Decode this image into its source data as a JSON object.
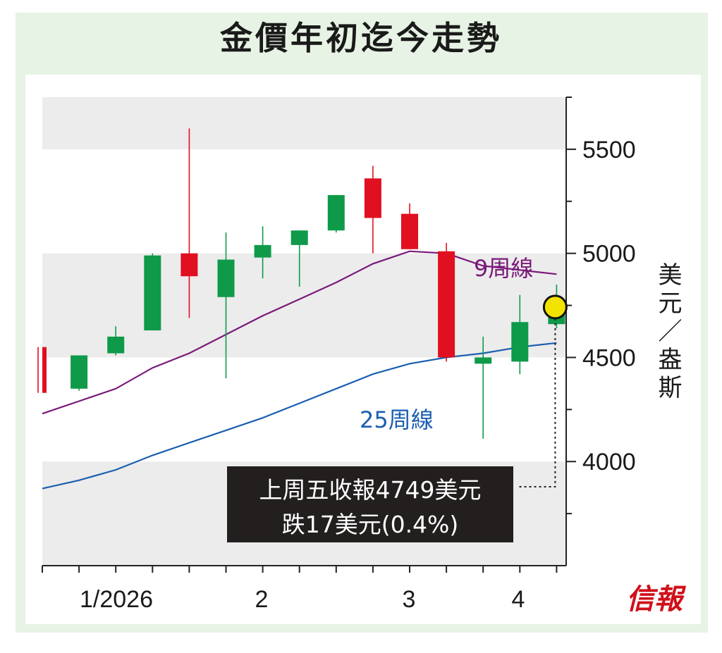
{
  "title": "金價年初迄今走勢",
  "unit_label": "美元／盎斯",
  "logo_text": "信報",
  "colors": {
    "up": "#0f9a4a",
    "down": "#e01020",
    "ma9": "#7a1a7a",
    "ma25": "#1a5fb0",
    "band": "#ececec",
    "highlight": "#f2e400"
  },
  "chart_data": {
    "type": "candlestick",
    "title": "金價年初迄今走勢",
    "ylabel": "美元／盎斯",
    "ylim": [
      3500,
      5750
    ],
    "yticks": [
      "4000",
      "4500",
      "5000",
      "5500"
    ],
    "yticks_values": [
      4000,
      4500,
      5000,
      5500
    ],
    "xticks": [
      "1/2026",
      "2",
      "3",
      "4"
    ],
    "weeks": 15,
    "candles": [
      {
        "open": 4550,
        "close": 4330,
        "high": 4550,
        "low": 4330
      },
      {
        "open": 4350,
        "close": 4510,
        "high": 4510,
        "low": 4340
      },
      {
        "open": 4520,
        "close": 4600,
        "high": 4650,
        "low": 4510
      },
      {
        "open": 4630,
        "close": 4990,
        "high": 5000,
        "low": 4630
      },
      {
        "open": 5000,
        "close": 4890,
        "high": 5600,
        "low": 4690
      },
      {
        "open": 4790,
        "close": 4970,
        "high": 5100,
        "low": 4400
      },
      {
        "open": 4980,
        "close": 5040,
        "high": 5130,
        "low": 4880
      },
      {
        "open": 5040,
        "close": 5110,
        "high": 5110,
        "low": 4840
      },
      {
        "open": 5110,
        "close": 5280,
        "high": 5280,
        "low": 5100
      },
      {
        "open": 5360,
        "close": 5170,
        "high": 5420,
        "low": 5000
      },
      {
        "open": 5190,
        "close": 5020,
        "high": 5240,
        "low": 5020
      },
      {
        "open": 5010,
        "close": 4500,
        "high": 5050,
        "low": 4480
      },
      {
        "open": 4470,
        "close": 4500,
        "high": 4600,
        "low": 4110
      },
      {
        "open": 4480,
        "close": 4670,
        "high": 4800,
        "low": 4420
      },
      {
        "open": 4660,
        "close": 4749,
        "high": 4850,
        "low": 4640
      }
    ],
    "series": [
      {
        "name": "9周線",
        "values": [
          4230,
          4290,
          4350,
          4450,
          4520,
          4610,
          4700,
          4780,
          4860,
          4950,
          5010,
          5000,
          4940,
          4920,
          4900
        ]
      },
      {
        "name": "25周線",
        "values": [
          3870,
          3910,
          3960,
          4030,
          4090,
          4150,
          4210,
          4280,
          4350,
          4420,
          4470,
          4500,
          4520,
          4550,
          4570
        ]
      }
    ],
    "annotation": {
      "line1": "上周五收報4749美元",
      "line2": "跌17美元(0.4%)",
      "value": 4749
    }
  }
}
